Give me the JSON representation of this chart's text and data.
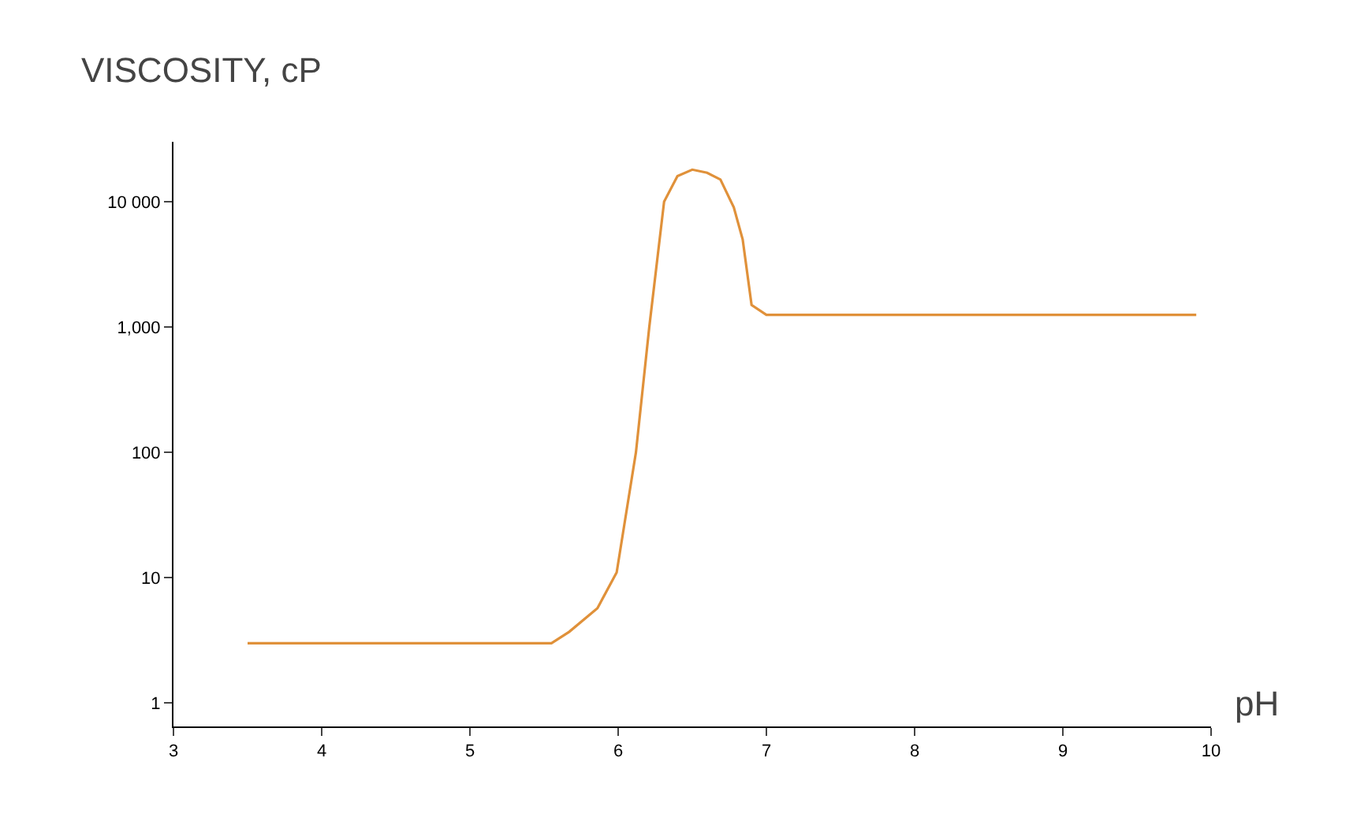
{
  "chart_data": {
    "type": "line",
    "title": "VISCOSITY, cP",
    "xlabel": "pH",
    "log": "y",
    "marker": "none",
    "line_style": "solid",
    "x": [
      3.5,
      4.0,
      5.0,
      5.55,
      5.67,
      5.86,
      5.99,
      6.12,
      6.21,
      6.31,
      6.4,
      6.5,
      6.6,
      6.69,
      6.78,
      6.84,
      6.9,
      7.0,
      8.0,
      9.0,
      9.9
    ],
    "series": [
      {
        "color": "#e0913a",
        "values": [
          3,
          3,
          3,
          3,
          3.7,
          5.7,
          11,
          100,
          1000,
          10000,
          16000,
          18000,
          17000,
          15000,
          9000,
          5000,
          1500,
          1250,
          1250,
          1250,
          1250
        ]
      }
    ],
    "xlim": [
      3,
      10
    ],
    "xticks": [
      3,
      4,
      5,
      6,
      7,
      8,
      9,
      10
    ],
    "ylim": [
      0.65,
      30000
    ],
    "yticks": [
      1,
      10,
      100,
      {
        "value": 1000,
        "label": "1,000"
      },
      {
        "value": 10000,
        "label": "10 000"
      }
    ]
  }
}
